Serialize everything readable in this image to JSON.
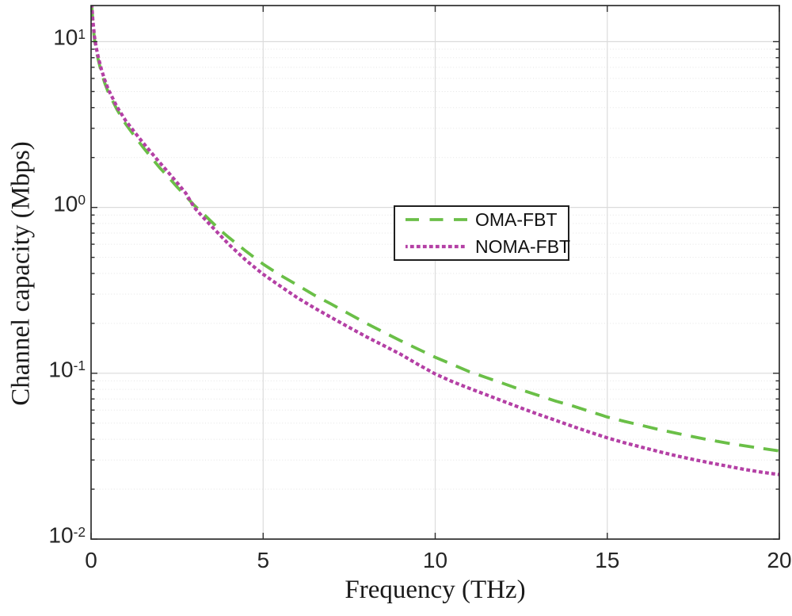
{
  "figure": {
    "background": "#ffffff",
    "axes_color": "#2e2e2e",
    "grid_major_color": "#dcdcdc",
    "grid_minor_color": "#e4e4e4"
  },
  "chart_data": {
    "type": "line",
    "title": "",
    "xlabel": "Frequency (THz)",
    "ylabel": "Channel capacity (Mbps)",
    "xlim": [
      0,
      20
    ],
    "ylim": [
      0.01,
      16.5
    ],
    "y_scale": "log",
    "grid": true,
    "minor_grid": true,
    "legend_position": "inside upper-center",
    "x_ticks": [
      {
        "label": "0",
        "value": 0
      },
      {
        "label": "5",
        "value": 5
      },
      {
        "label": "10",
        "value": 10
      },
      {
        "label": "15",
        "value": 15
      },
      {
        "label": "20",
        "value": 20
      }
    ],
    "y_ticks": [
      {
        "base": "10",
        "exp": "1",
        "value": 10
      },
      {
        "base": "10",
        "exp": "0",
        "value": 1
      },
      {
        "base": "10",
        "exp": "-1",
        "value": 0.1
      },
      {
        "base": "10",
        "exp": "-2",
        "value": 0.01
      }
    ],
    "x_gridlines": [
      5,
      10,
      15
    ],
    "y_major_gridlines": [
      0.1,
      1,
      10
    ],
    "series": [
      {
        "name": "OMA-FBT",
        "color": "#6abf47",
        "line_style": "dashed",
        "line_width": 3.8,
        "points": [
          [
            0.02,
            16.5
          ],
          [
            0.05,
            13.0
          ],
          [
            0.1,
            10.3
          ],
          [
            0.15,
            8.9
          ],
          [
            0.2,
            7.9
          ],
          [
            0.3,
            6.5
          ],
          [
            0.4,
            5.6
          ],
          [
            0.5,
            4.95
          ],
          [
            0.6,
            4.5
          ],
          [
            0.75,
            3.9
          ],
          [
            1.0,
            3.2
          ],
          [
            1.25,
            2.72
          ],
          [
            1.5,
            2.32
          ],
          [
            1.75,
            2.0
          ],
          [
            2.0,
            1.73
          ],
          [
            2.25,
            1.52
          ],
          [
            2.5,
            1.33
          ],
          [
            2.75,
            1.17
          ],
          [
            3.0,
            1.03
          ],
          [
            3.25,
            0.92
          ],
          [
            3.5,
            0.82
          ],
          [
            3.75,
            0.73
          ],
          [
            4.0,
            0.66
          ],
          [
            4.5,
            0.545
          ],
          [
            5.0,
            0.455
          ],
          [
            5.5,
            0.39
          ],
          [
            6.0,
            0.34
          ],
          [
            6.5,
            0.295
          ],
          [
            7.0,
            0.26
          ],
          [
            7.5,
            0.228
          ],
          [
            8.0,
            0.2
          ],
          [
            8.5,
            0.177
          ],
          [
            9.0,
            0.157
          ],
          [
            9.5,
            0.14
          ],
          [
            10.0,
            0.125
          ],
          [
            10.5,
            0.113
          ],
          [
            11.0,
            0.102
          ],
          [
            11.5,
            0.094
          ],
          [
            12.0,
            0.0865
          ],
          [
            12.5,
            0.0795
          ],
          [
            13.0,
            0.0735
          ],
          [
            13.5,
            0.068
          ],
          [
            14.0,
            0.0635
          ],
          [
            14.5,
            0.0588
          ],
          [
            15.0,
            0.0545
          ],
          [
            15.5,
            0.0513
          ],
          [
            16.0,
            0.0485
          ],
          [
            16.5,
            0.0458
          ],
          [
            17.0,
            0.0435
          ],
          [
            17.5,
            0.0414
          ],
          [
            18.0,
            0.0395
          ],
          [
            18.5,
            0.0379
          ],
          [
            19.0,
            0.0365
          ],
          [
            19.5,
            0.0352
          ],
          [
            20.0,
            0.034
          ]
        ]
      },
      {
        "name": "NOMA-FBT",
        "color": "#b440a5",
        "line_style": "dotted",
        "line_width": 4.2,
        "points": [
          [
            0.02,
            16.5
          ],
          [
            0.05,
            13.5
          ],
          [
            0.1,
            10.7
          ],
          [
            0.15,
            9.2
          ],
          [
            0.2,
            8.2
          ],
          [
            0.3,
            6.8
          ],
          [
            0.4,
            5.85
          ],
          [
            0.5,
            5.15
          ],
          [
            0.6,
            4.68
          ],
          [
            0.75,
            4.05
          ],
          [
            1.0,
            3.35
          ],
          [
            1.25,
            2.87
          ],
          [
            1.5,
            2.47
          ],
          [
            1.75,
            2.14
          ],
          [
            2.0,
            1.86
          ],
          [
            2.25,
            1.62
          ],
          [
            2.5,
            1.41
          ],
          [
            2.75,
            1.22
          ],
          [
            3.0,
            1.0
          ],
          [
            3.25,
            0.875
          ],
          [
            3.5,
            0.77
          ],
          [
            3.75,
            0.68
          ],
          [
            4.0,
            0.6
          ],
          [
            4.5,
            0.48
          ],
          [
            5.0,
            0.395
          ],
          [
            5.5,
            0.335
          ],
          [
            6.0,
            0.285
          ],
          [
            6.5,
            0.247
          ],
          [
            7.0,
            0.216
          ],
          [
            7.5,
            0.189
          ],
          [
            8.0,
            0.166
          ],
          [
            8.5,
            0.147
          ],
          [
            9.0,
            0.13
          ],
          [
            9.5,
            0.113
          ],
          [
            10.0,
            0.099
          ],
          [
            10.5,
            0.089
          ],
          [
            11.0,
            0.081
          ],
          [
            11.5,
            0.074
          ],
          [
            12.0,
            0.0675
          ],
          [
            12.5,
            0.0617
          ],
          [
            13.0,
            0.0565
          ],
          [
            13.5,
            0.052
          ],
          [
            14.0,
            0.0478
          ],
          [
            14.5,
            0.0441
          ],
          [
            15.0,
            0.0408
          ],
          [
            15.5,
            0.0381
          ],
          [
            16.0,
            0.0358
          ],
          [
            16.5,
            0.0337
          ],
          [
            17.0,
            0.0318
          ],
          [
            17.5,
            0.0302
          ],
          [
            18.0,
            0.0288
          ],
          [
            18.5,
            0.0275
          ],
          [
            19.0,
            0.0263
          ],
          [
            19.5,
            0.0253
          ],
          [
            20.0,
            0.0245
          ]
        ]
      }
    ]
  }
}
